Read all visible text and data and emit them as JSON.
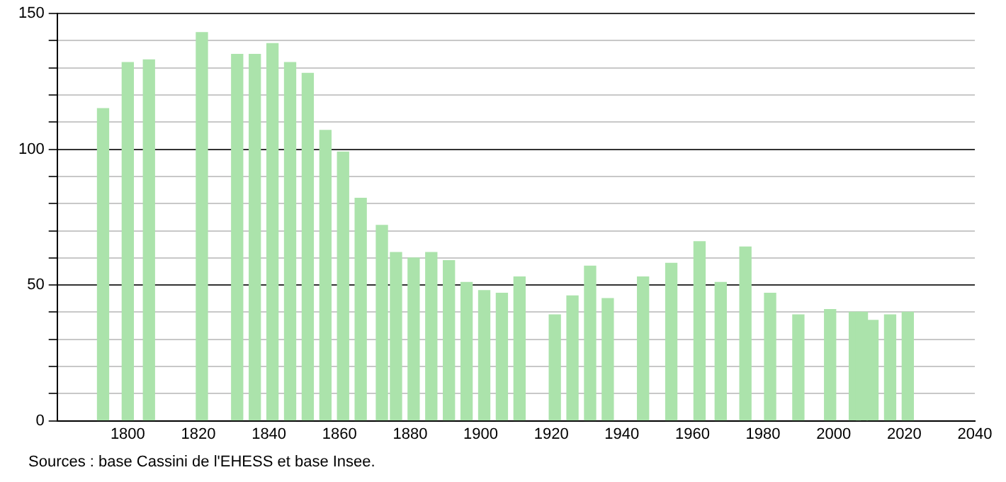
{
  "chart_data": {
    "type": "bar",
    "x": [
      1793,
      1800,
      1806,
      1821,
      1831,
      1836,
      1841,
      1846,
      1851,
      1856,
      1861,
      1866,
      1872,
      1876,
      1881,
      1886,
      1891,
      1896,
      1901,
      1906,
      1911,
      1921,
      1926,
      1931,
      1936,
      1946,
      1954,
      1962,
      1968,
      1975,
      1982,
      1990,
      1999,
      2006,
      2008,
      2011,
      2016,
      2021
    ],
    "values": [
      115,
      132,
      133,
      143,
      135,
      135,
      139,
      132,
      128,
      107,
      99,
      82,
      72,
      62,
      60,
      62,
      59,
      51,
      48,
      47,
      53,
      39,
      46,
      57,
      45,
      53,
      58,
      66,
      51,
      64,
      47,
      39,
      41,
      40,
      40,
      37,
      39,
      40
    ],
    "color": "#abe3ab",
    "xlim": [
      1780,
      2040
    ],
    "xticks": [
      1800,
      1820,
      1840,
      1860,
      1880,
      1900,
      1920,
      1940,
      1960,
      1980,
      2000,
      2020,
      2040
    ],
    "ylim": [
      0,
      150
    ],
    "yticks": [
      0,
      {
        "value": 10,
        "label": null
      },
      {
        "value": 20,
        "label": null
      },
      {
        "value": 30,
        "label": null
      },
      {
        "value": 40,
        "label": null
      },
      50,
      {
        "value": 60,
        "label": null
      },
      {
        "value": 70,
        "label": null
      },
      {
        "value": 80,
        "label": null
      },
      {
        "value": 90,
        "label": null
      },
      100,
      {
        "value": 110,
        "label": null
      },
      {
        "value": 120,
        "label": null
      },
      {
        "value": 130,
        "label": null
      },
      {
        "value": 140,
        "label": null
      },
      150
    ],
    "grid": "y",
    "legend": false,
    "annotations": [
      "Sources : base Cassini de l'EHESS et base Insee."
    ]
  }
}
